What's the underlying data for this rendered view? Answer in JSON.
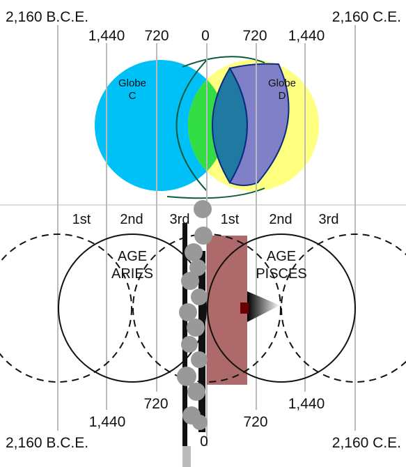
{
  "top_scale": {
    "left_end": "2,160 B.C.E.",
    "right_end": "2,160 C.E.",
    "ticks": [
      "1,440",
      "720",
      "0",
      "720",
      "1,440"
    ]
  },
  "globes": {
    "c": {
      "line1": "Globe",
      "line2": "C"
    },
    "d": {
      "line1": "Globe",
      "line2": "D"
    }
  },
  "thirds": [
    "1st",
    "2nd",
    "3rd",
    "1st",
    "2nd",
    "3rd"
  ],
  "ages": {
    "aries": {
      "line1": "AGE",
      "line2": "ARIES"
    },
    "pisces": {
      "line1": "AGE",
      "line2": "PISCES"
    }
  },
  "bottom_scale": {
    "left_inner": "720",
    "left_mid": "1,440",
    "left_end": "2,160 B.C.E.",
    "right_inner": "720",
    "right_mid": "1,440",
    "right_end": "2,160 C.E.",
    "center": "0"
  },
  "colors": {
    "globe_c": "#00c0f8",
    "globe_d": "#ffff80",
    "overlap_green": "#33dd44",
    "overlap_teal": "#2079a0",
    "overlap_purple": "#8080c8",
    "pisces_box": "#a05050",
    "grid_line": "#bbbbbb"
  }
}
